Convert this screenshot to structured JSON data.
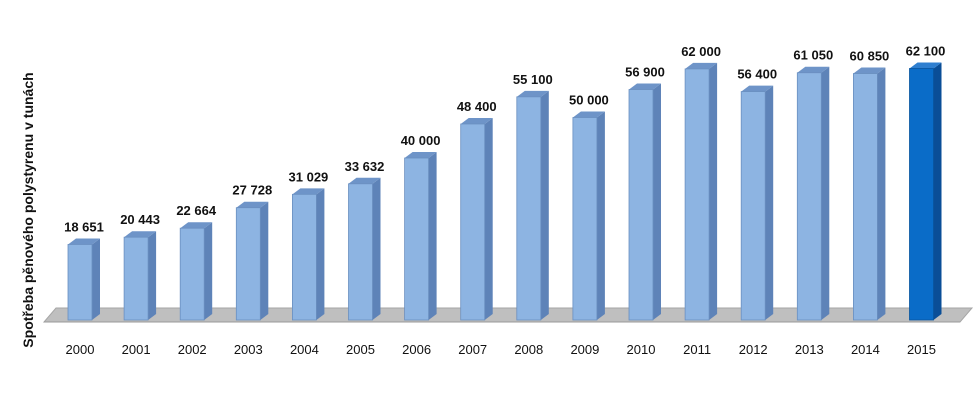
{
  "chart_data": {
    "type": "bar",
    "title": "",
    "xlabel": "",
    "ylabel": "Spotřeba pěnového polystyrenu v tunách",
    "categories": [
      "2000",
      "2001",
      "2002",
      "2003",
      "2004",
      "2005",
      "2006",
      "2007",
      "2008",
      "2009",
      "2010",
      "2011",
      "2012",
      "2013",
      "2014",
      "2015"
    ],
    "values": [
      18651,
      20443,
      22664,
      27728,
      31029,
      33632,
      40000,
      48400,
      55100,
      50000,
      56900,
      62000,
      56400,
      61050,
      60850,
      62100
    ],
    "value_labels": [
      "18 651",
      "20 443",
      "22 664",
      "27 728",
      "31 029",
      "33 632",
      "40 000",
      "48 400",
      "55 100",
      "50 000",
      "56 900",
      "62 000",
      "56 400",
      "61 050",
      "60 850",
      "62 100"
    ],
    "ylim": [
      0,
      70000
    ],
    "grid": false,
    "legend": "none",
    "highlight_index": 15,
    "colors": {
      "bar": "#8DB4E2",
      "bar_side": "#5E83B8",
      "bar_top": "#6E94C8",
      "bar_highlight": "#0A6CC8",
      "bar_highlight_side": "#0A4E97",
      "bar_highlight_top": "#2F7FD0",
      "floor": "#BFBFBF",
      "floor_edge": "#A6A6A6",
      "text": "#111111"
    }
  }
}
